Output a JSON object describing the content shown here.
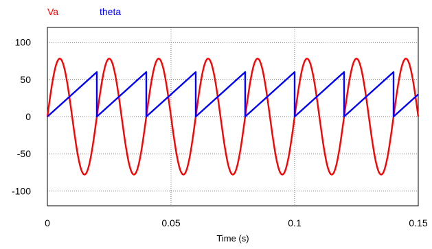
{
  "chart_data": {
    "type": "line",
    "xlabel": "Time (s)",
    "ylabel": "",
    "xlim": [
      0,
      0.15
    ],
    "ylim": [
      -120,
      120
    ],
    "x_ticks": [
      0,
      0.05,
      0.1,
      0.15
    ],
    "x_tick_labels": [
      "0",
      "0.05",
      "0.1",
      "0.15"
    ],
    "y_ticks": [
      100,
      50,
      0,
      -50,
      -100
    ],
    "y_tick_labels": [
      "100",
      "50",
      "0",
      "-50",
      "-100"
    ],
    "grid": true,
    "legend_placement": "top-left",
    "series": [
      {
        "name": "Va",
        "color": "#ff0000",
        "kind": "sine",
        "amplitude": 78,
        "frequency_hz": 50,
        "phase_rad": 0
      },
      {
        "name": "theta",
        "color": "#0000ff",
        "kind": "sawtooth",
        "min": 0,
        "max": 60,
        "period_s": 0.02
      }
    ]
  }
}
